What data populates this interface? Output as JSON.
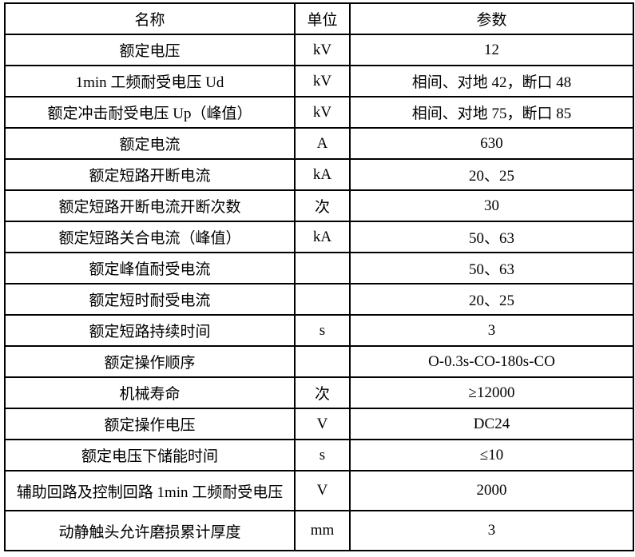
{
  "table": {
    "header": {
      "name": "名称",
      "unit": "单位",
      "param": "参数"
    },
    "rows": [
      {
        "name": "额定电压",
        "unit": "kV",
        "param": "12"
      },
      {
        "name": "1min 工频耐受电压 Ud",
        "unit": "kV",
        "param": "相间、对地 42，断口 48"
      },
      {
        "name": "额定冲击耐受电压 Up（峰值）",
        "unit": "kV",
        "param": "相间、对地 75，断口 85"
      },
      {
        "name": "额定电流",
        "unit": "A",
        "param": "630"
      },
      {
        "name": "额定短路开断电流",
        "unit": "kA",
        "param": "20、25"
      },
      {
        "name": "额定短路开断电流开断次数",
        "unit": "次",
        "param": "30"
      },
      {
        "name": "额定短路关合电流（峰值）",
        "unit": "kA",
        "param": "50、63"
      },
      {
        "name": "额定峰值耐受电流",
        "unit": "",
        "param": "50、63"
      },
      {
        "name": "额定短时耐受电流",
        "unit": "",
        "param": "20、25"
      },
      {
        "name": "额定短路持续时间",
        "unit": "s",
        "param": "3"
      },
      {
        "name": "额定操作顺序",
        "unit": "",
        "param": "O-0.3s-CO-180s-CO"
      },
      {
        "name": "机械寿命",
        "unit": "次",
        "param": "≥12000"
      },
      {
        "name": "额定操作电压",
        "unit": "V",
        "param": "DC24"
      },
      {
        "name": "额定电压下储能时间",
        "unit": "s",
        "param": "≤10"
      },
      {
        "name": "辅助回路及控制回路 1min 工频耐受电压",
        "unit": "V",
        "param": "2000"
      },
      {
        "name": "动静触头允许磨损累计厚度",
        "unit": "mm",
        "param": "3"
      }
    ]
  }
}
